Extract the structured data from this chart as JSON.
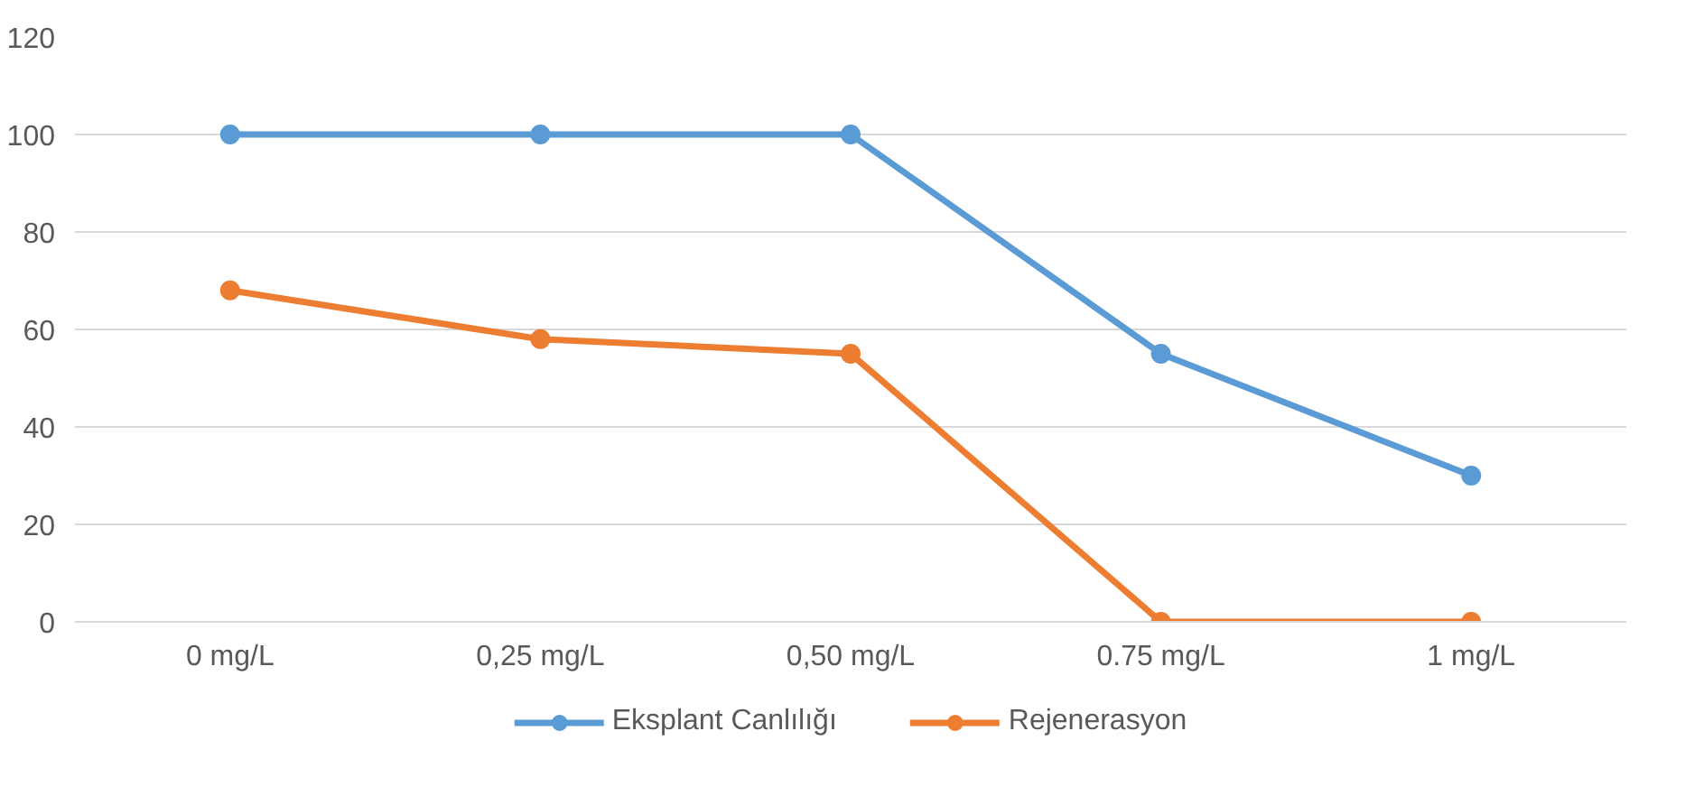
{
  "chart_data": {
    "type": "line",
    "categories": [
      "0 mg/L",
      "0,25 mg/L",
      "0,50 mg/L",
      "0.75 mg/L",
      "1 mg/L"
    ],
    "series": [
      {
        "name": "Eksplant Canlılığı",
        "color": "#5b9bd5",
        "values": [
          100,
          100,
          100,
          55,
          30
        ]
      },
      {
        "name": "Rejenerasyon",
        "color": "#ed7d31",
        "values": [
          68,
          58,
          55,
          0,
          0
        ]
      }
    ],
    "ylim": [
      0,
      120
    ],
    "yticks": [
      0,
      20,
      40,
      60,
      80,
      100,
      120
    ],
    "grid": "y",
    "legend": "bottom",
    "marker": "circle",
    "line_style": "solid"
  }
}
